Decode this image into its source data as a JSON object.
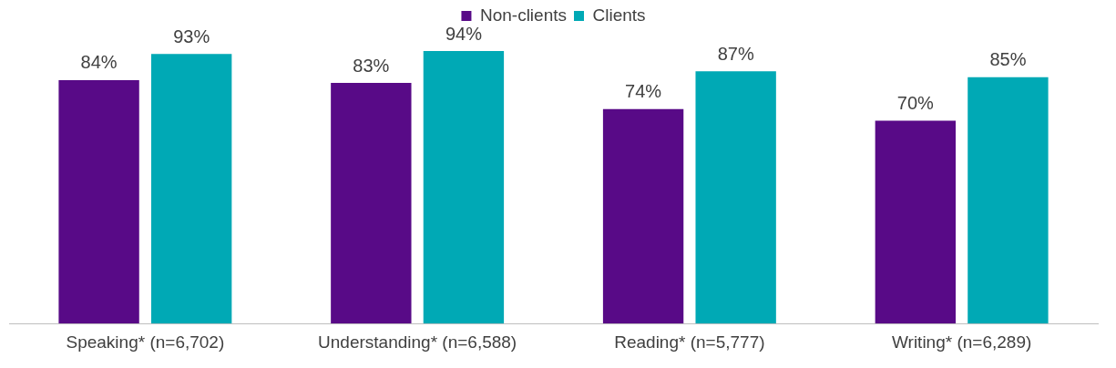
{
  "chart_data": {
    "type": "bar",
    "categories": [
      "Speaking* (n=6,702)",
      "Understanding* (n=6,588)",
      "Reading* (n=5,777)",
      "Writing* (n=6,289)"
    ],
    "series": [
      {
        "name": "Non-clients",
        "color": "#580a87",
        "values": [
          84,
          83,
          74,
          70
        ],
        "value_labels": [
          "84%",
          "83%",
          "74%",
          "70%"
        ]
      },
      {
        "name": "Clients",
        "color": "#00a9b5",
        "values": [
          93,
          94,
          87,
          85
        ],
        "value_labels": [
          "93%",
          "94%",
          "87%",
          "85%"
        ]
      }
    ],
    "tick_labels": "x",
    "grid": false,
    "legend": "top"
  }
}
